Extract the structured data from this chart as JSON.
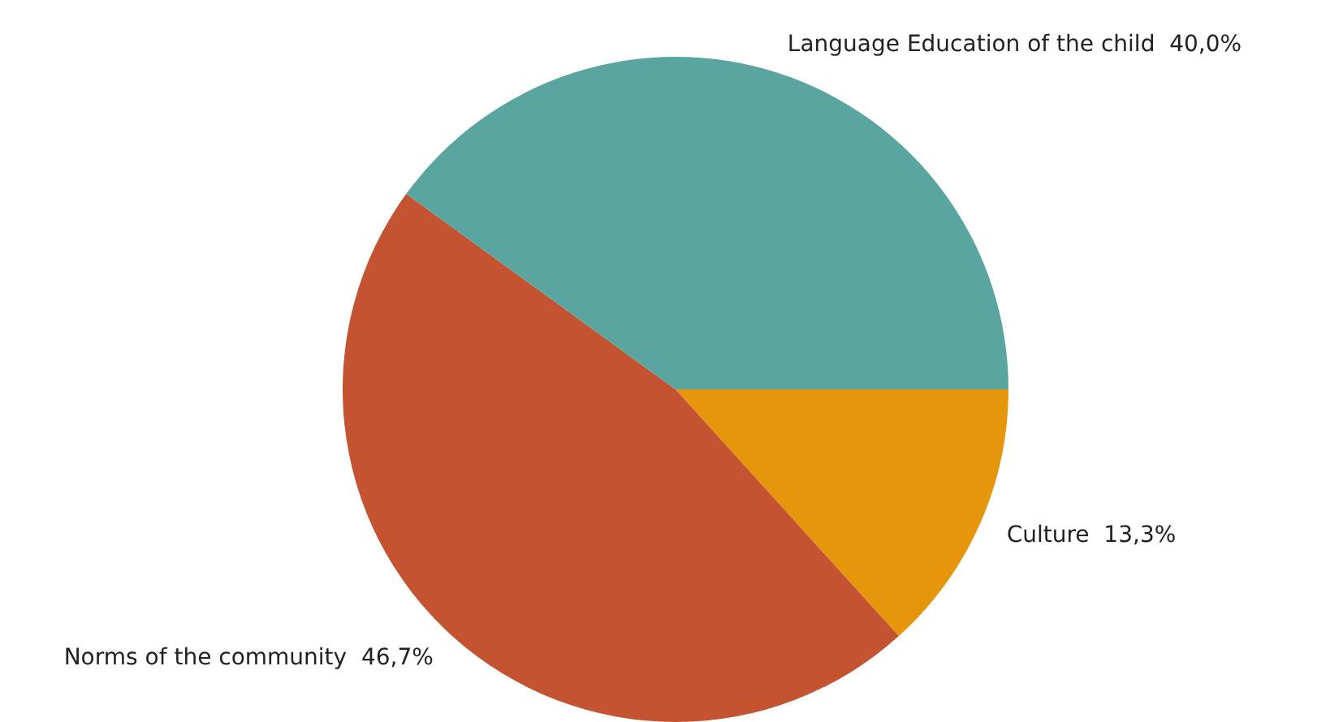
{
  "chart_data": {
    "type": "pie",
    "categories": [
      "Culture",
      "Norms of the community",
      "Language Education of the child"
    ],
    "values": [
      13.3,
      46.7,
      40.0
    ],
    "value_labels": [
      "13,3%",
      "46,7%",
      "40,0%"
    ],
    "colors": [
      "#e5960b",
      "#c45431",
      "#5ba5a0"
    ],
    "legend": false
  }
}
